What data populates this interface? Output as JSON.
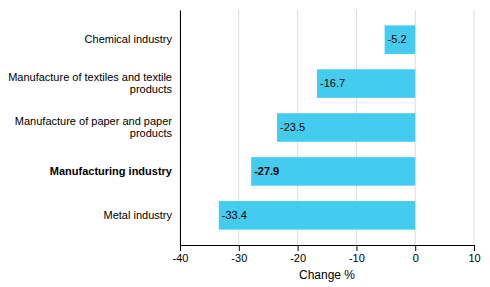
{
  "chart_data": {
    "type": "bar",
    "orientation": "horizontal",
    "categories": [
      "Metal industry",
      "Manufacturing industry",
      "Manufacture of paper and paper\nproducts",
      "Manufacture of textiles and textile\nproducts",
      "Chemical industry"
    ],
    "values": [
      -33.4,
      -27.9,
      -23.5,
      -16.7,
      -5.2
    ],
    "color": "#44CCEE",
    "xlabel": "Change %",
    "xlim": [
      -40,
      10
    ],
    "xticks": [
      -40,
      -30,
      -20,
      -10,
      0,
      10
    ],
    "grid": true,
    "data_labels": true
  }
}
